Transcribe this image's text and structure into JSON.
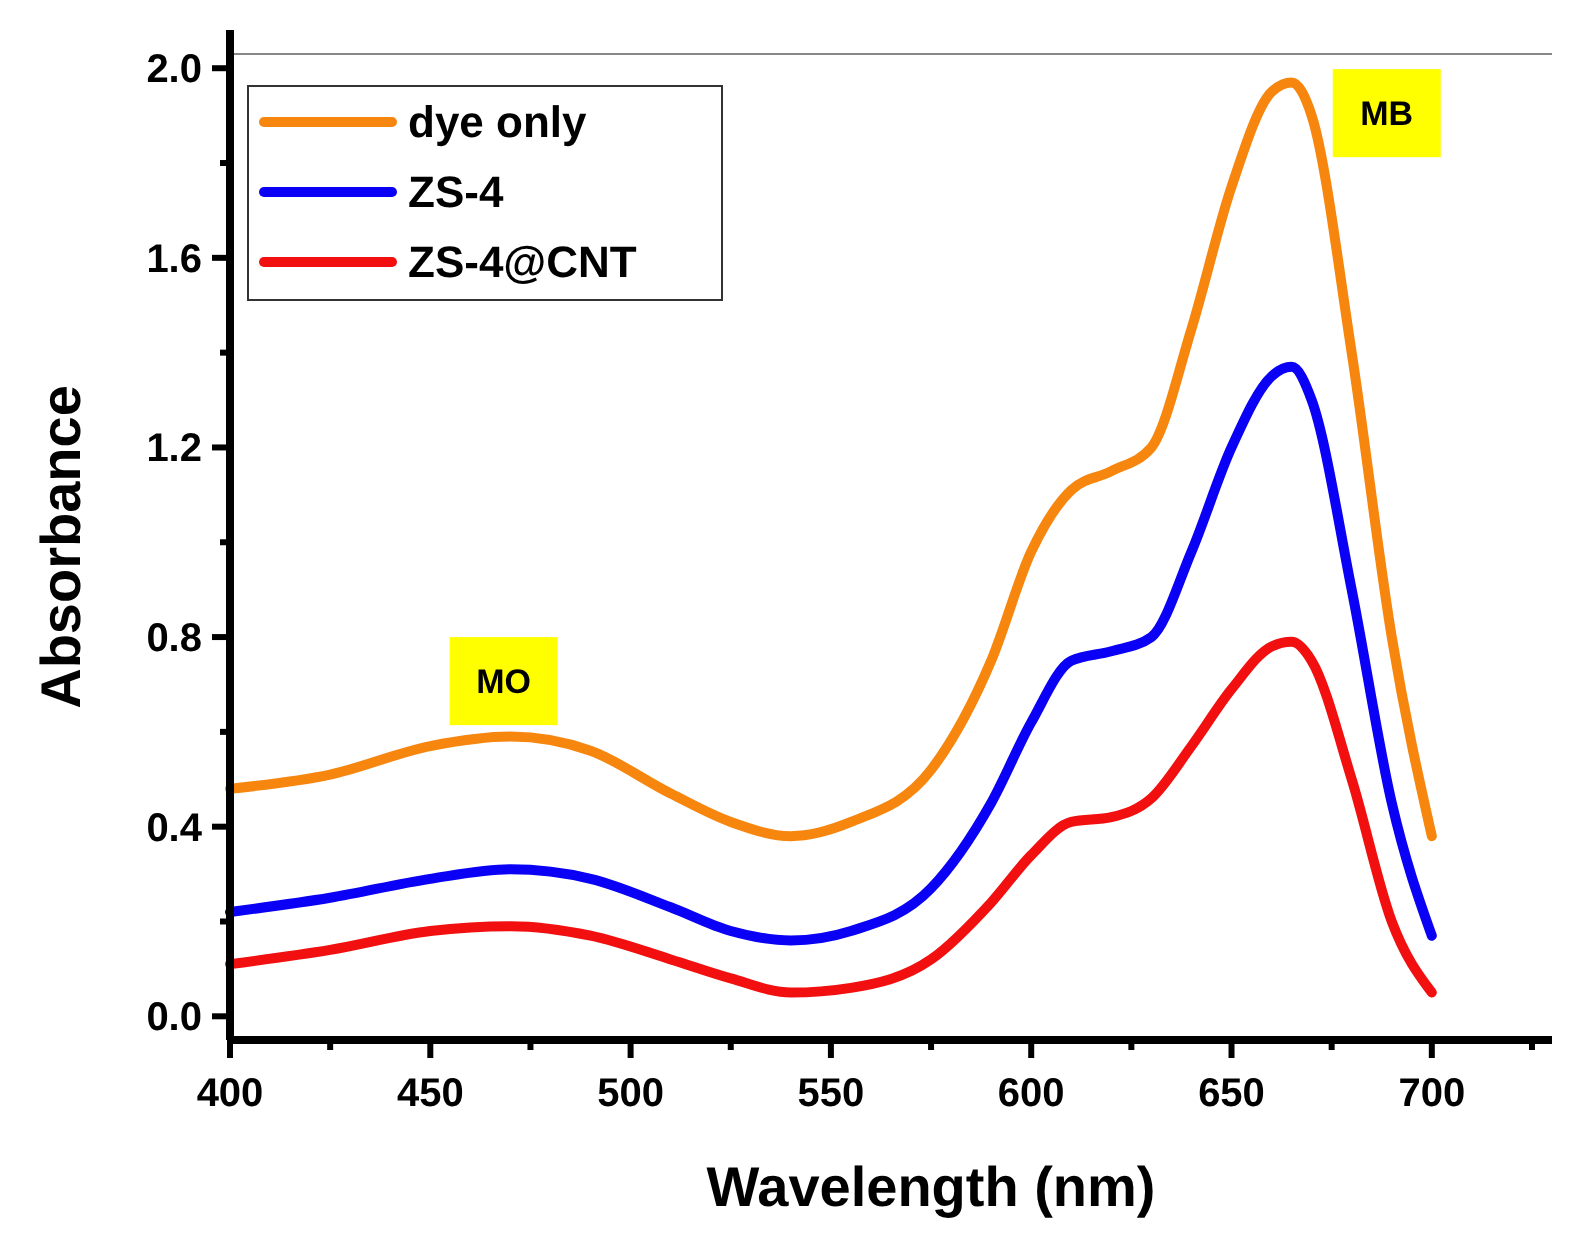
{
  "chart_data": {
    "type": "line",
    "xlabel": "Wavelength (nm)",
    "ylabel": "Absorbance",
    "x": [
      400,
      425,
      450,
      470,
      490,
      510,
      525,
      540,
      555,
      575,
      590,
      600,
      610,
      620,
      630,
      640,
      650,
      660,
      665,
      670,
      680,
      690,
      700
    ],
    "series": [
      {
        "name": "dye only",
        "color": "#f7860f",
        "values": [
          0.48,
          0.51,
          0.57,
          0.59,
          0.56,
          0.47,
          0.41,
          0.38,
          0.41,
          0.52,
          0.75,
          0.98,
          1.11,
          1.15,
          1.2,
          1.45,
          1.75,
          1.95,
          1.97,
          1.9,
          1.4,
          0.8,
          0.38
        ]
      },
      {
        "name": "ZS-4",
        "color": "#0a00f5",
        "values": [
          0.22,
          0.25,
          0.29,
          0.31,
          0.29,
          0.23,
          0.18,
          0.16,
          0.18,
          0.27,
          0.45,
          0.62,
          0.75,
          0.77,
          0.8,
          0.98,
          1.2,
          1.35,
          1.37,
          1.3,
          0.9,
          0.45,
          0.17
        ]
      },
      {
        "name": "ZS-4@CNT",
        "color": "#f20f0f",
        "values": [
          0.11,
          0.14,
          0.18,
          0.19,
          0.17,
          0.12,
          0.08,
          0.05,
          0.06,
          0.12,
          0.24,
          0.34,
          0.41,
          0.42,
          0.46,
          0.57,
          0.69,
          0.78,
          0.79,
          0.75,
          0.5,
          0.2,
          0.05
        ]
      }
    ],
    "xlim": [
      400,
      730
    ],
    "xticks": [
      400,
      {
        "value": 425,
        "label": null
      },
      450,
      {
        "value": 475,
        "label": null
      },
      500,
      {
        "value": 525,
        "label": null
      },
      550,
      {
        "value": 575,
        "label": null
      },
      600,
      {
        "value": 625,
        "label": null
      },
      650,
      {
        "value": 675,
        "label": null
      },
      700,
      {
        "value": 725,
        "label": null
      }
    ],
    "ylim": [
      -0.05,
      2.03
    ],
    "yticks": [
      {
        "value": 0,
        "label": "0.0"
      },
      {
        "value": 0.2,
        "label": null
      },
      0.4,
      {
        "value": 0.6,
        "label": null
      },
      0.8,
      {
        "value": 1.0,
        "label": null
      },
      1.2,
      {
        "value": 1.4,
        "label": null
      },
      1.6,
      {
        "value": 1.8,
        "label": null
      },
      {
        "value": 2,
        "label": "2.0"
      }
    ],
    "annotations": [
      "MO",
      "MB"
    ],
    "legend": "top left",
    "marker": "none",
    "line_style": "solid",
    "grid": false
  }
}
